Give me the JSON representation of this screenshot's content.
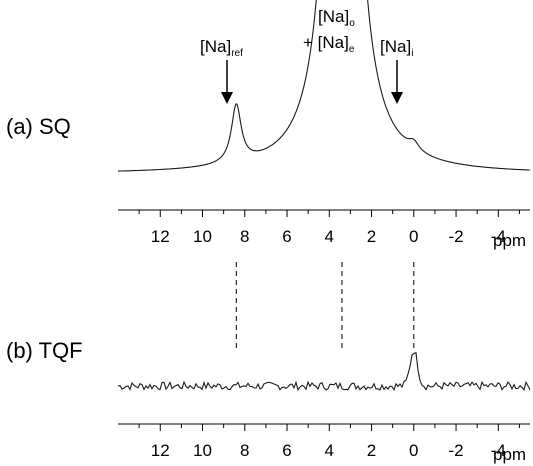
{
  "chart_data": [
    {
      "panel_label": "(a) SQ",
      "type": "line",
      "x_unit": "ppm",
      "x_reversed": true,
      "xlim": [
        14,
        -5.5
      ],
      "x_ticks": [
        12,
        10,
        8,
        6,
        4,
        2,
        0,
        -2,
        -4
      ],
      "peaks": [
        {
          "ppm": 8.4,
          "rel_height": 0.34,
          "width_ppm": 0.28
        },
        {
          "ppm": 3.4,
          "rel_height": 6.0,
          "width_ppm": 0.55
        },
        {
          "ppm": 0.0,
          "rel_height": 0.05,
          "width_ppm": 0.3
        }
      ],
      "annotations": [
        {
          "main": "[Na]",
          "sub": "ref",
          "ppm": 8.4
        },
        {
          "main": "[Na]",
          "sub": "i",
          "ppm": 0.0
        },
        {
          "line1_main": "[Na]",
          "line1_sub": "o",
          "line2_main": "+ [Na]",
          "line2_sub": "e",
          "ppm": 3.4
        }
      ]
    },
    {
      "panel_label": "(b) TQF",
      "type": "line",
      "x_unit": "ppm",
      "x_reversed": true,
      "xlim": [
        14,
        -5.5
      ],
      "x_ticks": [
        12,
        10,
        8,
        6,
        4,
        2,
        0,
        -2,
        -4
      ],
      "peaks": [
        {
          "ppm": 0.0,
          "rel_height": 0.36,
          "width_ppm": 0.25
        }
      ],
      "noise_level": 0.04,
      "dashed_markers_ppm": [
        8.4,
        3.4,
        0.0
      ]
    }
  ]
}
